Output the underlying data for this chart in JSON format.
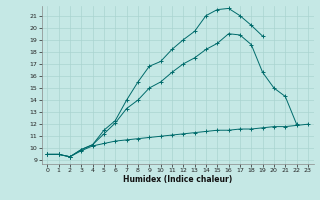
{
  "xlabel": "Humidex (Indice chaleur)",
  "bg_color": "#c5e8e5",
  "line_color": "#006b6b",
  "grid_color": "#aad4d0",
  "xlim": [
    -0.5,
    23.5
  ],
  "ylim": [
    8.7,
    21.8
  ],
  "yticks": [
    9,
    10,
    11,
    12,
    13,
    14,
    15,
    16,
    17,
    18,
    19,
    20,
    21
  ],
  "xticks": [
    0,
    1,
    2,
    3,
    4,
    5,
    6,
    7,
    8,
    9,
    10,
    11,
    12,
    13,
    14,
    15,
    16,
    17,
    18,
    19,
    20,
    21,
    22,
    23
  ],
  "curve1_x": [
    0,
    1,
    2,
    3,
    4,
    5,
    6,
    7,
    8,
    9,
    10,
    11,
    12,
    13,
    14,
    15,
    16,
    17,
    18,
    19,
    20,
    21,
    22,
    23
  ],
  "curve1_y": [
    9.5,
    9.5,
    9.3,
    9.8,
    10.2,
    10.4,
    10.6,
    10.7,
    10.8,
    10.9,
    11.0,
    11.1,
    11.2,
    11.3,
    11.4,
    11.5,
    11.5,
    11.6,
    11.6,
    11.7,
    11.8,
    11.8,
    11.9,
    12.0
  ],
  "curve2_x": [
    0,
    1,
    2,
    3,
    4,
    5,
    6,
    7,
    8,
    9,
    10,
    11,
    12,
    13,
    14,
    15,
    16,
    17,
    18,
    19,
    20,
    21,
    22
  ],
  "curve2_y": [
    9.5,
    9.5,
    9.3,
    9.9,
    10.3,
    11.2,
    12.1,
    13.3,
    14.0,
    15.0,
    15.5,
    16.3,
    17.0,
    17.5,
    18.2,
    18.7,
    19.5,
    19.4,
    18.6,
    16.3,
    15.0,
    14.3,
    12.0
  ],
  "curve3_x": [
    0,
    1,
    2,
    3,
    4,
    5,
    6,
    7,
    8,
    9,
    10,
    11,
    12,
    13,
    14,
    15,
    16,
    17,
    18,
    19
  ],
  "curve3_y": [
    9.5,
    9.5,
    9.3,
    9.9,
    10.3,
    11.5,
    12.3,
    14.0,
    15.5,
    16.8,
    17.2,
    18.2,
    19.0,
    19.7,
    21.0,
    21.5,
    21.6,
    21.0,
    20.2,
    19.3
  ]
}
